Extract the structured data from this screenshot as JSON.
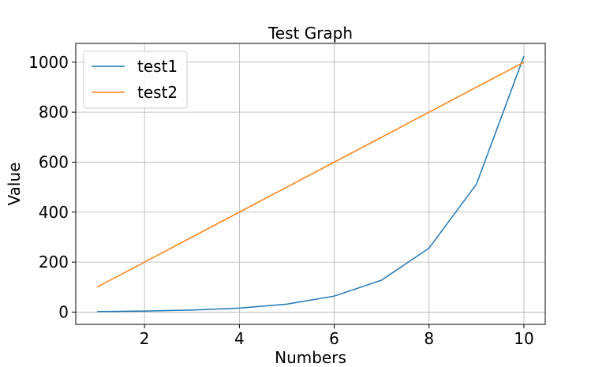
{
  "chart_data": {
    "type": "line",
    "title": "Test Graph",
    "xlabel": "Numbers",
    "ylabel": "Value",
    "x": [
      1,
      2,
      3,
      4,
      5,
      6,
      7,
      8,
      9,
      10
    ],
    "series": [
      {
        "name": "test1",
        "color": "#1f77b4",
        "values": [
          2,
          4,
          8,
          16,
          32,
          64,
          128,
          256,
          512,
          1024
        ]
      },
      {
        "name": "test2",
        "color": "#ff7f0e",
        "values": [
          100,
          200,
          300,
          400,
          500,
          600,
          700,
          800,
          900,
          1000
        ]
      }
    ],
    "xlim": [
      0.55,
      10.45
    ],
    "ylim": [
      -49.1,
      1075.1
    ],
    "xticks": [
      2,
      4,
      6,
      8,
      10
    ],
    "yticks": [
      0,
      200,
      400,
      600,
      800,
      1000
    ],
    "grid": true,
    "legend_position": "top-left"
  }
}
